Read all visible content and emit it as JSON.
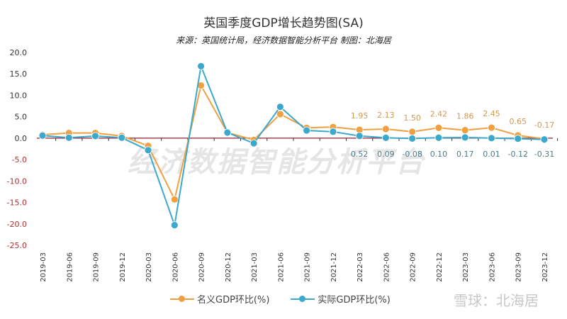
{
  "chart_data": {
    "type": "line",
    "title": "英国季度GDP增长趋势图(SA)",
    "subtitle": "来源：英国统计局，经济数据智能分析平台 制图：北海居",
    "categories": [
      "2019-03",
      "2019-06",
      "2019-09",
      "2019-12",
      "2020-03",
      "2020-06",
      "2020-09",
      "2020-12",
      "2021-03",
      "2021-06",
      "2021-09",
      "2021-12",
      "2022-03",
      "2022-06",
      "2022-09",
      "2022-12",
      "2023-03",
      "2023-06",
      "2023-09",
      "2023-12"
    ],
    "ylim": [
      -25,
      20
    ],
    "yticks": [
      "20.0",
      "15.0",
      "10.0",
      "5.0",
      "0.0",
      "-5.0",
      "-10.0",
      "-15.0",
      "-20.0",
      "-25.0"
    ],
    "series": [
      {
        "name": "名义GDP环比(%)",
        "color": "#f0a040",
        "values": [
          0.8,
          1.2,
          1.2,
          0.5,
          -1.8,
          -14.3,
          12.3,
          1.3,
          -0.4,
          5.6,
          2.4,
          2.6,
          1.95,
          2.13,
          1.5,
          2.42,
          1.86,
          2.45,
          0.65,
          -0.17
        ],
        "labels": {
          "12": "1.95",
          "13": "2.13",
          "14": "1.50",
          "15": "2.42",
          "16": "1.86",
          "17": "2.45",
          "18": "0.65",
          "19": "-0.17"
        }
      },
      {
        "name": "实际GDP环比(%)",
        "color": "#3ba8cc",
        "values": [
          0.6,
          0.1,
          0.5,
          0.1,
          -2.8,
          -20.3,
          16.8,
          1.3,
          -1.2,
          7.3,
          1.8,
          1.5,
          0.52,
          0.09,
          -0.08,
          0.1,
          0.17,
          0.01,
          -0.12,
          -0.31
        ],
        "labels": {
          "12": "0.52",
          "13": "0.09",
          "14": "-0.08",
          "15": "0.10",
          "16": "0.17",
          "17": "0.01",
          "18": "-0.12",
          "19": "-0.31"
        }
      }
    ],
    "legend": "bottom",
    "grid": false
  },
  "watermark": "经济数据智能分析平台",
  "brand": "雪球：北海居",
  "colors": {
    "negative_tick": "#b03030",
    "zero_line": "#8b2030"
  }
}
